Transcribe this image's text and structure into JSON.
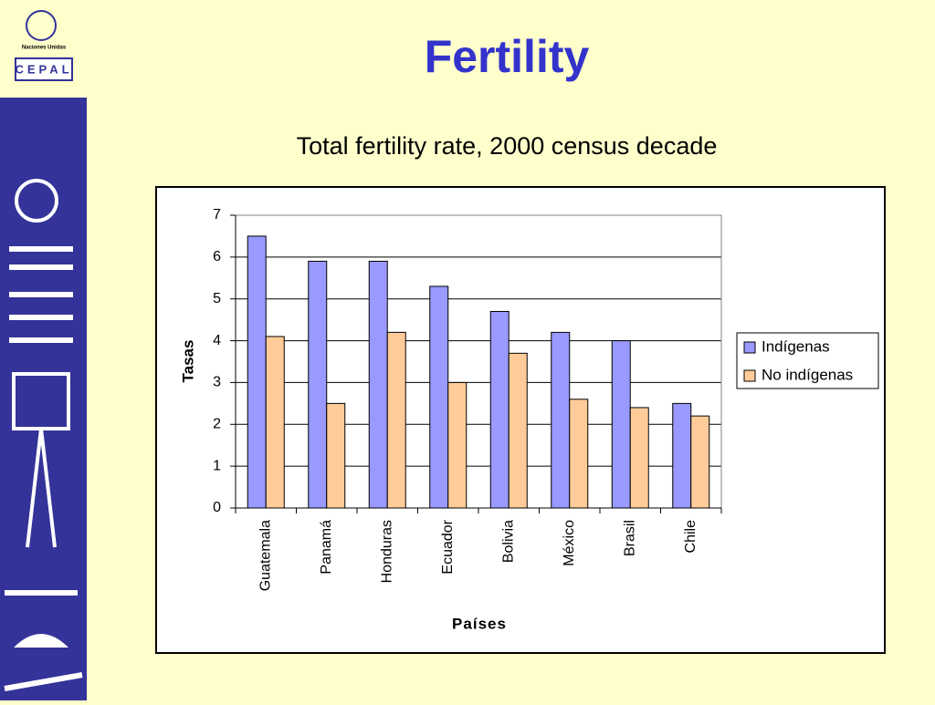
{
  "logo": {
    "org": "Naciones Unidas",
    "name": "CEPAL"
  },
  "chart_data": {
    "type": "bar",
    "title": "Fertility",
    "subtitle": "Total fertility rate, 2000 census decade",
    "x_label": "Países",
    "y_label": "Tasas",
    "categories": [
      "Guatemala",
      "Panamá",
      "Honduras",
      "Ecuador",
      "Bolivia",
      "México",
      "Brasil",
      "Chile"
    ],
    "series": [
      {
        "name": "Indígenas",
        "color": "#9999ff",
        "values": [
          6.5,
          5.9,
          5.9,
          5.3,
          4.7,
          4.2,
          4.0,
          2.5
        ]
      },
      {
        "name": "No indígenas",
        "color": "#ffcc99",
        "values": [
          4.1,
          2.5,
          4.2,
          3.0,
          3.7,
          2.6,
          2.4,
          2.2
        ]
      }
    ],
    "ylim": [
      0,
      7
    ],
    "yticks": [
      0,
      1,
      2,
      3,
      4,
      5,
      6,
      7
    ],
    "grid": true,
    "legend": "right"
  }
}
